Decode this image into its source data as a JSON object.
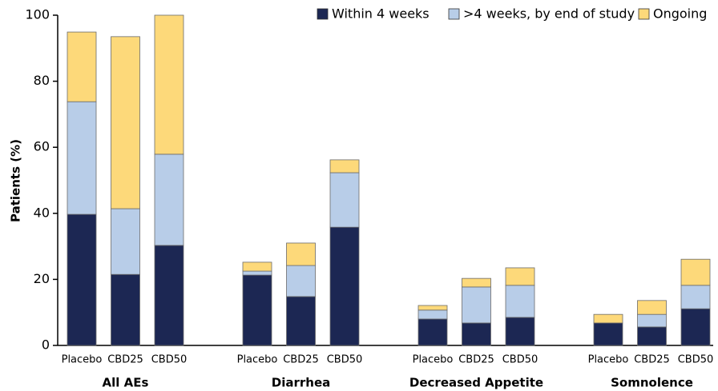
{
  "chart_data": {
    "type": "stacked_bar",
    "y_label": "Patients (%)",
    "groups": [
      "All AEs",
      "Diarrhea",
      "Decreased Appetite",
      "Somnolence"
    ],
    "categories": [
      "Placebo",
      "CBD25",
      "CBD50",
      "Placebo",
      "CBD25",
      "CBD50",
      "Placebo",
      "CBD25",
      "CBD50",
      "Placebo",
      "CBD25",
      "CBD50"
    ],
    "series": [
      {
        "name": "Within 4 weeks",
        "color": "#1c2753",
        "values": [
          39.7,
          21.5,
          30.3,
          21.3,
          14.8,
          35.8,
          8.0,
          6.8,
          8.5,
          6.8,
          5.6,
          11.1
        ]
      },
      {
        "name": ">4 weeks, by end of study",
        "color": "#b8cde8",
        "values": [
          34.1,
          19.9,
          27.6,
          1.2,
          9.4,
          16.5,
          2.7,
          10.9,
          9.7,
          0,
          3.8,
          7.1
        ]
      },
      {
        "name": "Ongoing",
        "color": "#fdd97a",
        "values": [
          21.1,
          52.1,
          42.1,
          2.7,
          6.8,
          3.9,
          1.4,
          2.6,
          5.3,
          2.6,
          4.2,
          7.9
        ]
      }
    ],
    "ylim": [
      0,
      100
    ],
    "yticks": [
      0,
      20,
      40,
      60,
      80,
      100
    ],
    "grid": false,
    "legend": "top-right"
  }
}
